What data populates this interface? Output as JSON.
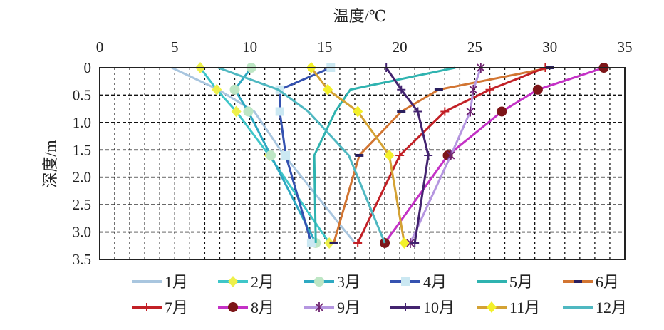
{
  "chart_data": {
    "type": "line",
    "title": "",
    "xlabel": "温度/℃",
    "ylabel": "深度/m",
    "xlim": [
      0,
      35
    ],
    "ylim": [
      0,
      3.5
    ],
    "y_inverted": true,
    "x_axis_position": "top",
    "grid": true,
    "legend_position": "bottom",
    "xticks": [
      "0",
      "5",
      "10",
      "15",
      "20",
      "25",
      "30",
      "35"
    ],
    "yticks": [
      "0",
      "0.5",
      "1.0",
      "1.5",
      "2.0",
      "2.5",
      "3.0",
      "3.5"
    ],
    "depths": [
      0,
      0.4,
      0.8,
      1.6,
      3.2
    ],
    "series": [
      {
        "name": "1月",
        "color": "#a9c6df",
        "marker": "none",
        "marker_color": "#c8dcef",
        "values": [
          4.8,
          7.9,
          10.3,
          12.3,
          17.0
        ]
      },
      {
        "name": "2月",
        "color": "#3ec6c9",
        "marker": "diamond",
        "marker_color": "#eef04a",
        "values": [
          6.7,
          7.8,
          9.1,
          11.3,
          15.3
        ]
      },
      {
        "name": "3月",
        "color": "#2ea9c2",
        "marker": "circle",
        "marker_color": "#bde6c4",
        "values": [
          10.1,
          9.0,
          9.9,
          11.4,
          14.4
        ]
      },
      {
        "name": "4月",
        "color": "#3552b0",
        "marker": "square",
        "marker_color": "#cbe8f2",
        "values": [
          15.4,
          12.0,
          12.0,
          12.4,
          14.1
        ]
      },
      {
        "name": "5月",
        "color": "#2fb3b0",
        "marker": "none",
        "marker_color": "#2fb3b0",
        "values": [
          23.7,
          16.7,
          15.7,
          14.3,
          14.4
        ]
      },
      {
        "name": "6月",
        "color": "#d27532",
        "marker": "dash",
        "marker_color": "#2a1f5e",
        "values": [
          30.0,
          22.6,
          20.1,
          17.3,
          15.6
        ]
      },
      {
        "name": "7月",
        "color": "#c22026",
        "marker": "plus",
        "marker_color": "#c22026",
        "values": [
          29.7,
          26.0,
          23.0,
          20.0,
          17.2
        ]
      },
      {
        "name": "8月",
        "color": "#c431c6",
        "marker": "circle",
        "marker_color": "#7d1518",
        "values": [
          33.6,
          29.2,
          26.8,
          23.2,
          19.0
        ]
      },
      {
        "name": "9月",
        "color": "#b596e0",
        "marker": "star",
        "marker_color": "#6f2370",
        "values": [
          25.4,
          24.9,
          24.7,
          23.4,
          20.7
        ]
      },
      {
        "name": "10月",
        "color": "#43236f",
        "marker": "plus",
        "marker_color": "#43236f",
        "values": [
          19.1,
          20.1,
          21.2,
          21.9,
          21.0
        ]
      },
      {
        "name": "11月",
        "color": "#d4a234",
        "marker": "diamond",
        "marker_color": "#f3f02a",
        "values": [
          14.1,
          15.2,
          17.2,
          19.3,
          20.3
        ]
      },
      {
        "name": "12月",
        "color": "#4fb8c1",
        "marker": "none",
        "marker_color": "#4fb8c1",
        "values": [
          7.9,
          11.9,
          13.9,
          16.6,
          19.0
        ]
      }
    ]
  }
}
